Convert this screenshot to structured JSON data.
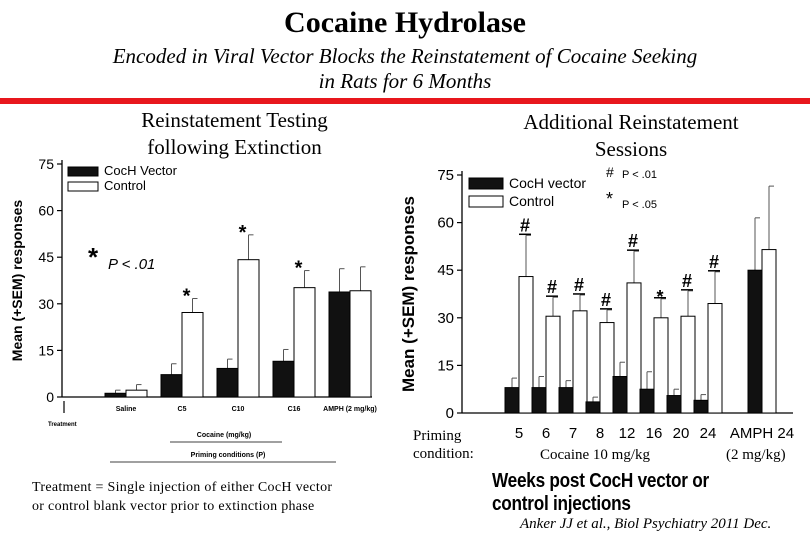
{
  "header": {
    "title": "Cocaine Hydrolase",
    "subtitle_line1": "Encoded in Viral Vector Blocks the Reinstatement of Cocaine Seeking",
    "subtitle_line2": "in Rats for 6 Months"
  },
  "colors": {
    "accent_bar": "#e8171d",
    "coch": "#111111",
    "control": "#ffffff"
  },
  "left_panel": {
    "title_line1": "Reinstatement Testing",
    "title_line2": "following Extinction",
    "treatment_tick": "Treatment",
    "priming_conditions_label": "Priming conditions (P)"
  },
  "right_panel": {
    "title_line1": "Additional Reinstatement",
    "title_line2": "Sessions",
    "priming_label_line1": "Priming",
    "priming_label_line2": "condition:",
    "cocaine_dose": "Cocaine 10 mg/kg",
    "amph_dose": "(2 mg/kg)",
    "weeks_label": "Weeks post CocH vector or control injections"
  },
  "footnote_line1": "Treatment = Single injection of either CocH vector",
  "footnote_line2": "or control blank vector prior to extinction phase",
  "citation": "Anker JJ et al., Biol Psychiatry 2011 Dec.",
  "chart_data": [
    {
      "type": "bar",
      "ylabel": "Mean (+SEM) responses",
      "xlabel": "Cocaine (mg/kg)",
      "ylim": [
        0,
        75
      ],
      "yticks": [
        "0",
        "15",
        "30",
        "45",
        "60",
        "75"
      ],
      "categories": [
        "Saline",
        "C5",
        "C10",
        "C16",
        "AMPH (2 mg/kg)"
      ],
      "legend": [
        "CocH Vector",
        "Control"
      ],
      "legend_position": "top-left",
      "series": [
        {
          "name": "CocH Vector",
          "values": [
            1.2,
            7.2,
            9.2,
            11.5,
            33.8
          ],
          "errors": [
            1.0,
            3.5,
            3.0,
            3.8,
            7.5
          ]
        },
        {
          "name": "Control",
          "values": [
            2.2,
            27.2,
            44.2,
            35.2,
            34.2
          ],
          "errors": [
            1.8,
            4.5,
            8.0,
            5.5,
            7.7
          ]
        }
      ],
      "significance_marks": [
        {
          "category": "C5",
          "symbol": "*"
        },
        {
          "category": "C10",
          "symbol": "*"
        },
        {
          "category": "C16",
          "symbol": "*"
        }
      ],
      "significance_legend": {
        "symbol": "*",
        "text": "P < .01"
      }
    },
    {
      "type": "bar",
      "ylabel": "Mean (+SEM) responses",
      "ylim": [
        0,
        75
      ],
      "yticks": [
        "0",
        "15",
        "30",
        "45",
        "60",
        "75"
      ],
      "categories": [
        "5",
        "6",
        "7",
        "8",
        "12",
        "16",
        "20",
        "24",
        "AMPH 24"
      ],
      "legend": [
        "CocH vector",
        "Control"
      ],
      "legend_position": "top-left",
      "series": [
        {
          "name": "CocH vector",
          "values": [
            8,
            8,
            8,
            3.5,
            11.5,
            7.5,
            5.5,
            4,
            45
          ],
          "errors": [
            3,
            3.5,
            2.2,
            1.5,
            4.5,
            5.5,
            2,
            1.8,
            16.5
          ]
        },
        {
          "name": "Control",
          "values": [
            43,
            30.5,
            32.2,
            28.5,
            41,
            30,
            30.5,
            34.5,
            51.5
          ],
          "errors": [
            13,
            6,
            5,
            4,
            10,
            6,
            8,
            10,
            20
          ]
        }
      ],
      "significance_marks": [
        {
          "category": "5",
          "symbol": "#"
        },
        {
          "category": "6",
          "symbol": "#"
        },
        {
          "category": "7",
          "symbol": "#"
        },
        {
          "category": "8",
          "symbol": "#"
        },
        {
          "category": "12",
          "symbol": "#"
        },
        {
          "category": "16",
          "symbol": "*"
        },
        {
          "category": "20",
          "symbol": "#"
        },
        {
          "category": "24",
          "symbol": "#"
        }
      ],
      "significance_legend": [
        {
          "symbol": "#",
          "text": "P < .01"
        },
        {
          "symbol": "*",
          "text": "P < .05"
        }
      ]
    }
  ]
}
